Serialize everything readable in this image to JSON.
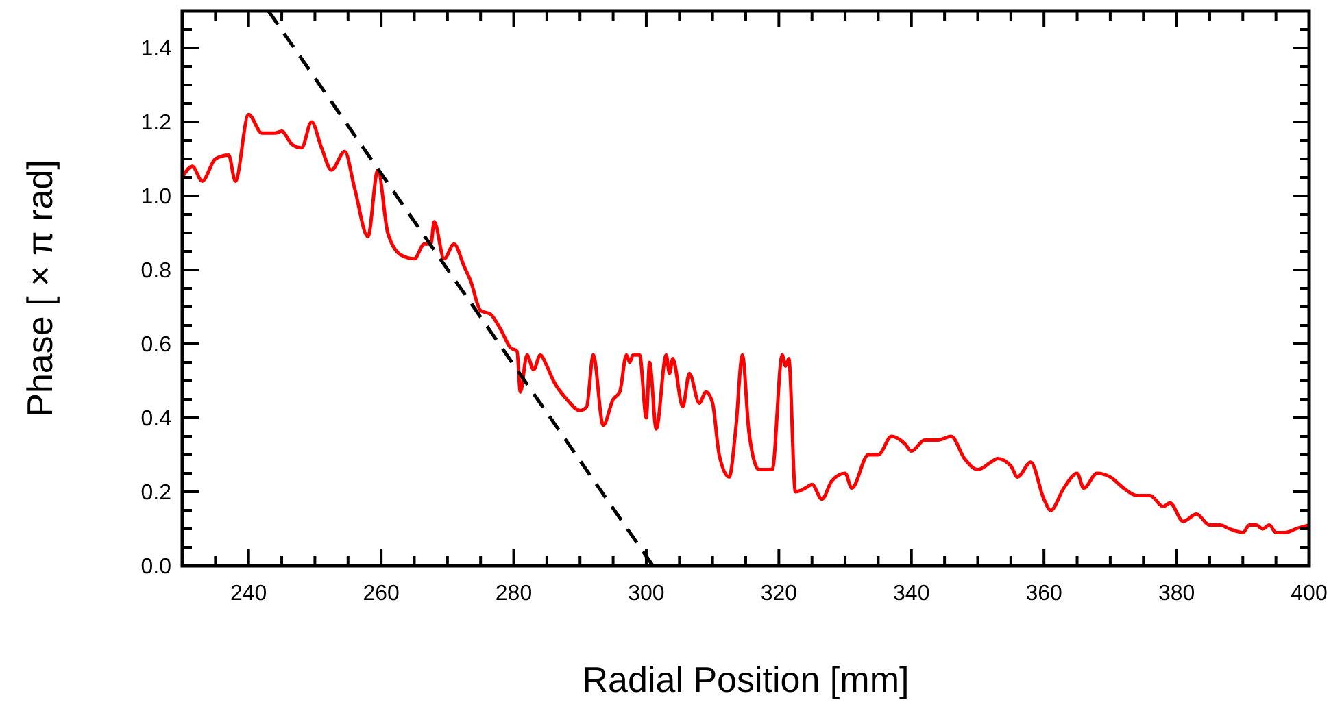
{
  "chart_data": {
    "type": "line",
    "xlabel": "Radial Position [mm]",
    "ylabel": "Phase [ × π  rad]",
    "xlim": [
      230,
      400
    ],
    "ylim": [
      0,
      1.5
    ],
    "xticks": [
      {
        "value": 235,
        "label": null
      },
      240,
      {
        "value": 245,
        "label": null
      },
      {
        "value": 250,
        "label": null
      },
      {
        "value": 255,
        "label": null
      },
      260,
      {
        "value": 265,
        "label": null
      },
      {
        "value": 270,
        "label": null
      },
      {
        "value": 275,
        "label": null
      },
      280,
      {
        "value": 285,
        "label": null
      },
      {
        "value": 290,
        "label": null
      },
      {
        "value": 295,
        "label": null
      },
      300,
      {
        "value": 305,
        "label": null
      },
      {
        "value": 310,
        "label": null
      },
      {
        "value": 315,
        "label": null
      },
      320,
      {
        "value": 325,
        "label": null
      },
      {
        "value": 330,
        "label": null
      },
      {
        "value": 335,
        "label": null
      },
      340,
      {
        "value": 345,
        "label": null
      },
      {
        "value": 350,
        "label": null
      },
      {
        "value": 355,
        "label": null
      },
      360,
      {
        "value": 365,
        "label": null
      },
      {
        "value": 370,
        "label": null
      },
      {
        "value": 375,
        "label": null
      },
      380,
      {
        "value": 385,
        "label": null
      },
      {
        "value": 390,
        "label": null
      },
      {
        "value": 395,
        "label": null
      },
      400
    ],
    "yticks": [
      {
        "value": 0,
        "label": "0.0"
      },
      {
        "value": 0.05,
        "label": null
      },
      {
        "value": 0.1,
        "label": null
      },
      {
        "value": 0.15,
        "label": null
      },
      0.2,
      {
        "value": 0.25,
        "label": null
      },
      {
        "value": 0.3,
        "label": null
      },
      {
        "value": 0.35,
        "label": null
      },
      0.4,
      {
        "value": 0.45,
        "label": null
      },
      {
        "value": 0.5,
        "label": null
      },
      {
        "value": 0.55,
        "label": null
      },
      0.6,
      {
        "value": 0.65,
        "label": null
      },
      {
        "value": 0.7,
        "label": null
      },
      {
        "value": 0.75,
        "label": null
      },
      0.8,
      {
        "value": 0.85,
        "label": null
      },
      {
        "value": 0.9,
        "label": null
      },
      {
        "value": 0.95,
        "label": null
      },
      {
        "value": 1,
        "label": "1.0"
      },
      {
        "value": 1.05,
        "label": null
      },
      {
        "value": 1.1,
        "label": null
      },
      {
        "value": 1.15,
        "label": null
      },
      1.2,
      {
        "value": 1.25,
        "label": null
      },
      {
        "value": 1.3,
        "label": null
      },
      {
        "value": 1.35,
        "label": null
      },
      1.4,
      {
        "value": 1.45,
        "label": null
      }
    ],
    "grid": false,
    "marker": "none",
    "series": [
      {
        "color": "#ff0000",
        "line_style": "solid",
        "x": [
          230,
          231.5,
          233,
          235,
          237,
          238,
          240,
          242,
          244,
          245,
          246.5,
          248,
          249.5,
          251,
          252.5,
          254.5,
          256,
          258,
          259.5,
          261,
          263,
          265,
          266.5,
          267.5,
          268,
          269.5,
          271,
          272.5,
          273.5,
          275,
          276.5,
          278,
          279.5,
          280.5,
          281,
          282,
          283,
          284,
          285,
          286,
          288,
          290,
          291,
          292,
          293.5,
          295,
          296,
          297,
          297.5,
          298,
          299,
          300,
          300.5,
          301.5,
          303,
          303.5,
          304,
          305.5,
          306.5,
          308,
          309,
          310,
          311,
          312.5,
          313.5,
          314.5,
          315.5,
          317,
          319,
          320.5,
          321,
          321.5,
          322.5,
          324,
          325,
          326.5,
          328,
          330,
          331,
          333.5,
          335,
          337,
          339,
          340,
          342,
          344,
          346,
          348,
          350,
          352,
          353,
          355,
          356,
          358,
          360,
          361,
          363,
          365,
          366,
          368,
          370,
          372,
          374,
          376,
          378,
          379,
          381,
          383,
          385,
          386.5,
          388,
          390,
          391,
          392,
          393,
          394,
          395,
          396.5,
          398,
          400
        ],
        "values": [
          1.05,
          1.08,
          1.04,
          1.1,
          1.11,
          1.04,
          1.22,
          1.17,
          1.17,
          1.175,
          1.14,
          1.13,
          1.2,
          1.13,
          1.07,
          1.12,
          1.02,
          0.89,
          1.07,
          0.9,
          0.84,
          0.83,
          0.87,
          0.87,
          0.93,
          0.83,
          0.87,
          0.81,
          0.77,
          0.69,
          0.68,
          0.64,
          0.59,
          0.58,
          0.47,
          0.57,
          0.53,
          0.57,
          0.54,
          0.5,
          0.45,
          0.42,
          0.43,
          0.57,
          0.38,
          0.45,
          0.47,
          0.57,
          0.55,
          0.57,
          0.57,
          0.4,
          0.55,
          0.37,
          0.57,
          0.52,
          0.56,
          0.43,
          0.52,
          0.44,
          0.47,
          0.44,
          0.3,
          0.24,
          0.37,
          0.57,
          0.36,
          0.26,
          0.26,
          0.57,
          0.54,
          0.56,
          0.2,
          0.21,
          0.22,
          0.18,
          0.23,
          0.25,
          0.21,
          0.3,
          0.3,
          0.35,
          0.33,
          0.31,
          0.34,
          0.34,
          0.35,
          0.29,
          0.26,
          0.28,
          0.29,
          0.27,
          0.24,
          0.28,
          0.18,
          0.15,
          0.21,
          0.25,
          0.21,
          0.25,
          0.24,
          0.21,
          0.19,
          0.19,
          0.16,
          0.17,
          0.12,
          0.14,
          0.11,
          0.11,
          0.1,
          0.09,
          0.11,
          0.11,
          0.1,
          0.11,
          0.09,
          0.09,
          0.1,
          0.11
        ]
      },
      {
        "color": "#000000",
        "line_style": "dashed",
        "x": [
          243,
          301
        ],
        "values": [
          1.5,
          0
        ]
      }
    ]
  }
}
